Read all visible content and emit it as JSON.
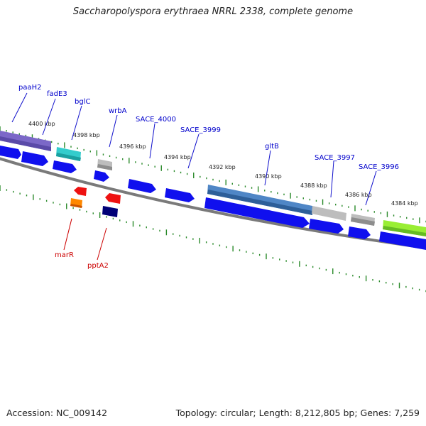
{
  "title": "Saccharopolyspora erythraea NRRL 2338, complete genome",
  "footer": {
    "accession": "Accession: NC_009142",
    "stats": "Topology: circular; Length: 8,212,805 bp; Genes: 7,259"
  },
  "colors": {
    "forward_label": "#0000cc",
    "reverse_label": "#cc0000",
    "cds": "#1010ee",
    "backbone": "#808080",
    "ticks": "#2a8a2a"
  },
  "scale_labels": [
    "4400 kbp",
    "4398 kbp",
    "4396 kbp",
    "4394 kbp",
    "4392 kbp",
    "4390 kbp",
    "4388 kbp",
    "4386 kbp",
    "4384 kbp"
  ],
  "forward_gene_labels": [
    "paaH2",
    "fadE3",
    "bglC",
    "wrbA",
    "SACE_4000",
    "SACE_3999",
    "gltB",
    "SACE_3997",
    "SACE_3996"
  ],
  "reverse_gene_labels": [
    "marR",
    "pptA2"
  ]
}
